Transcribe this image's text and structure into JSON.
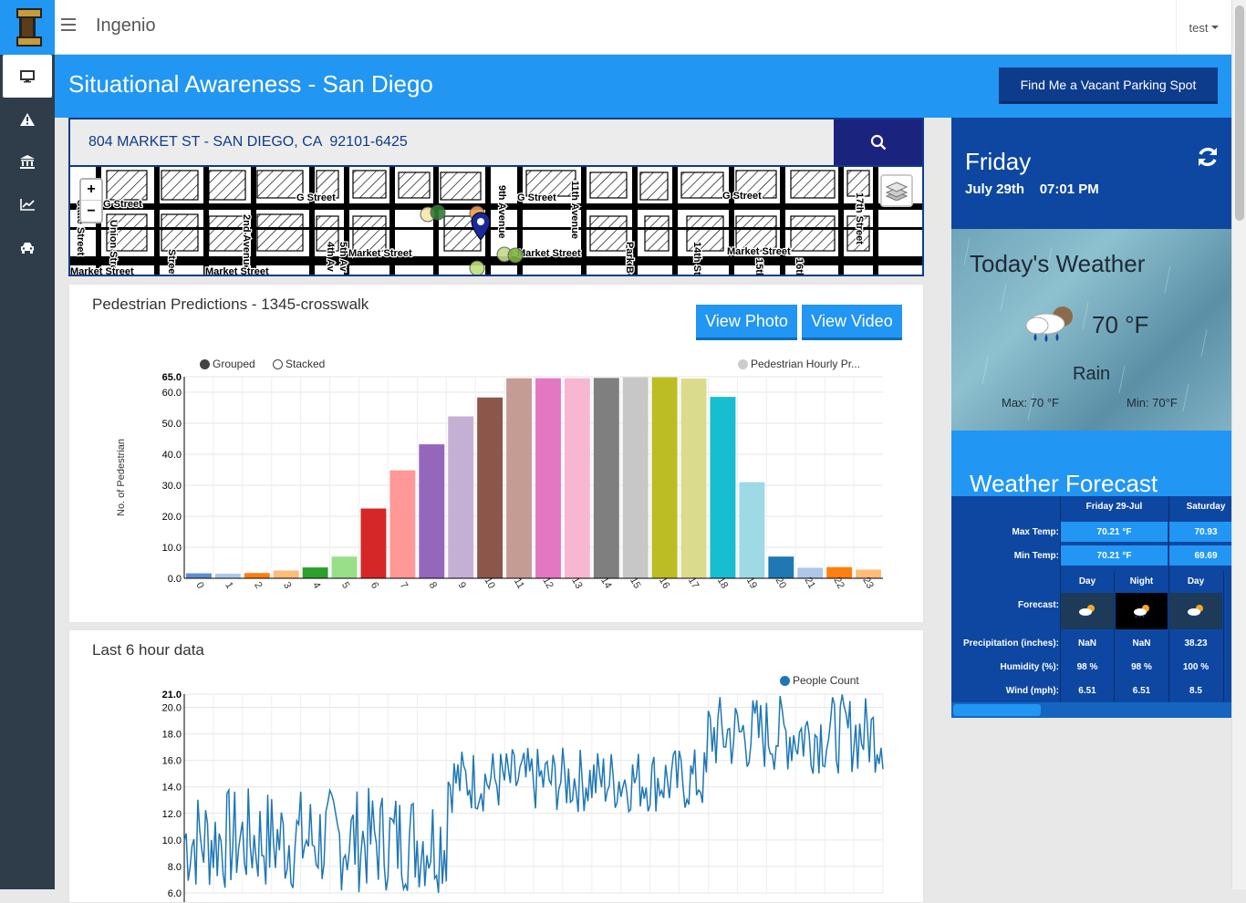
{
  "app": {
    "brand": "Ingenio",
    "user": "test"
  },
  "sidebar": {
    "items": [
      {
        "name": "dashboard",
        "icon": "monitor-icon"
      },
      {
        "name": "alerts",
        "icon": "warning-icon"
      },
      {
        "name": "buildings",
        "icon": "bank-icon"
      },
      {
        "name": "analytics",
        "icon": "chart-icon"
      },
      {
        "name": "traffic",
        "icon": "car-icon"
      }
    ]
  },
  "header": {
    "title": "Situational Awareness - San Diego",
    "park_button": "Find Me a Vacant Parking Spot"
  },
  "search": {
    "value": "804 MARKET ST - SAN DIEGO, CA  92101-6425"
  },
  "map": {
    "zoom_in": "+",
    "zoom_out": "−",
    "labels": [
      "G Street",
      "G Street",
      "G Street",
      "G Street",
      "Market Street",
      "Market Street",
      "Market Street",
      "2nd Avenue",
      "4th Av",
      "5th Av",
      "9th Avenue",
      "11th Avenue",
      "14th Street",
      "17th Street",
      "Park Bou",
      "State Street",
      "Union Street",
      "15th",
      "16th",
      "Street",
      "Market Street",
      "Market Street"
    ]
  },
  "pedestrian_card": {
    "title": "Pedestrian Predictions - 1345-crosswalk",
    "view_photo": "View Photo",
    "view_video": "View Video",
    "legend_grouped": "Grouped",
    "legend_stacked": "Stacked",
    "legend_series": "Pedestrian Hourly Pr..."
  },
  "last6_card": {
    "title": "Last 6 hour data",
    "legend_series": "People Count"
  },
  "chart_data": [
    {
      "type": "bar",
      "ylabel": "No. of Pedestrian",
      "ylim": [
        0,
        65
      ],
      "yticks": [
        "65.0",
        "60.0",
        "50.0",
        "40.0",
        "30.0",
        "20.0",
        "10.0",
        "0.0"
      ],
      "categories": [
        "0",
        "1",
        "2",
        "3",
        "4",
        "5",
        "6",
        "7",
        "8",
        "9",
        "10",
        "11",
        "12",
        "13",
        "14",
        "15",
        "16",
        "17",
        "18",
        "19",
        "20",
        "21",
        "22",
        "23"
      ],
      "series": [
        {
          "name": "Pedestrian Hourly Pr...",
          "values": [
            1.6,
            1.5,
            1.7,
            2.5,
            3.5,
            7.0,
            22.5,
            34.8,
            43.2,
            52.2,
            58.3,
            64.5,
            64.5,
            64.5,
            64.6,
            64.8,
            64.8,
            64.4,
            58.5,
            31.0,
            7.0,
            3.4,
            3.6,
            2.8
          ]
        }
      ],
      "colors": [
        "#5b8fd0",
        "#aec7e8",
        "#ff7f0e",
        "#ffbb78",
        "#2ca02c",
        "#98df8a",
        "#d62728",
        "#ff9896",
        "#9467bd",
        "#c5b0d5",
        "#8c564b",
        "#c49c94",
        "#e377c2",
        "#f7b6d2",
        "#7f7f7f",
        "#c7c7c7",
        "#bcbd22",
        "#dbdb8d",
        "#17becf",
        "#9edae5",
        "#1f77b4",
        "#aec7e8",
        "#ff7f0e",
        "#ffbb78"
      ],
      "grid": true,
      "legend": "top"
    },
    {
      "type": "line",
      "ylim": [
        6,
        21
      ],
      "yticks": [
        "21.0",
        "20.0",
        "18.0",
        "16.0",
        "14.0",
        "12.0",
        "10.0",
        "8.0",
        "6.0"
      ],
      "series": [
        {
          "name": "People Count"
        }
      ],
      "segments": [
        {
          "from": 0.0,
          "to": 0.376,
          "min": 6,
          "max": 14
        },
        {
          "from": 0.376,
          "to": 0.748,
          "min": 12,
          "max": 17
        },
        {
          "from": 0.748,
          "to": 1.0,
          "min": 15,
          "max": 21
        }
      ],
      "color": "#1f77b4",
      "grid": true,
      "legend": "top-right"
    }
  ],
  "weather": {
    "day": "Friday",
    "date": "July 29th",
    "time": "07:01 PM",
    "today_title": "Today's Weather",
    "temp": "70 °F",
    "condition": "Rain",
    "max": "Max: 70 °F",
    "min": "Min: 70°F",
    "forecast_title": "Weather Forecast",
    "forecast": {
      "columns": [
        "Friday 29-Jul",
        "Saturday"
      ],
      "max_label": "Max Temp:",
      "min_label": "Min Temp:",
      "max_values": [
        "70.21 °F",
        "70.93"
      ],
      "min_values": [
        "70.21 °F",
        "69.69"
      ],
      "period_headers": [
        "Day",
        "Night",
        "Day"
      ],
      "forecast_label": "Forecast:",
      "precip_label": "Precipitation (inches):",
      "humidity_label": "Humidity (%):",
      "wind_label": "Wind (mph):",
      "precip": [
        "NaN",
        "NaN",
        "38.23"
      ],
      "humidity": [
        "98 %",
        "98 %",
        "100 %"
      ],
      "wind": [
        "6.51",
        "6.51",
        "8.5"
      ]
    }
  }
}
